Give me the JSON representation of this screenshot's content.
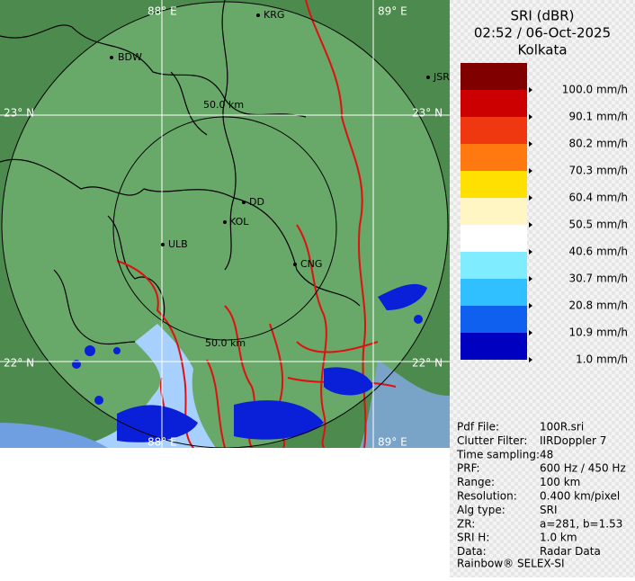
{
  "map": {
    "lon_labels": [
      "88° E",
      "89° E"
    ],
    "lat_labels": [
      "23° N",
      "22° N"
    ],
    "ring_label": "50.0 km",
    "cities": [
      "BDW",
      "KRG",
      "JSR",
      "DD",
      "KOL",
      "ULB",
      "CNG"
    ]
  },
  "legend": {
    "title": [
      "SRI (dBR)",
      "02:52 / 06-Oct-2025",
      "Kolkata"
    ],
    "entries": [
      {
        "label": "100.0 mm/h",
        "color": "#800000"
      },
      {
        "label": "90.1 mm/h",
        "color": "#cc0000"
      },
      {
        "label": "80.2 mm/h",
        "color": "#f03810"
      },
      {
        "label": "70.3 mm/h",
        "color": "#ff7810"
      },
      {
        "label": "60.4 mm/h",
        "color": "#ffe000"
      },
      {
        "label": "50.5 mm/h",
        "color": "#fff6c4"
      },
      {
        "label": "40.6 mm/h",
        "color": "#ffffff"
      },
      {
        "label": "30.7 mm/h",
        "color": "#80ecff"
      },
      {
        "label": "20.8 mm/h",
        "color": "#30c0ff"
      },
      {
        "label": "10.9 mm/h",
        "color": "#1060f0"
      },
      {
        "label": "1.0 mm/h",
        "color": "#0000c0"
      }
    ]
  },
  "info": {
    "rows": [
      [
        "Pdf File:",
        "100R.sri"
      ],
      [
        "Clutter Filter:",
        "IIRDoppler 7"
      ],
      [
        "Time sampling:",
        "48"
      ],
      [
        "PRF:",
        "600 Hz / 450 Hz"
      ],
      [
        "Range:",
        "100 km"
      ],
      [
        "Resolution:",
        "0.400 km/pixel"
      ],
      [
        "Alg type:",
        "SRI"
      ],
      [
        "ZR:",
        "a=281, b=1.53"
      ],
      [
        "SRI H:",
        "1.0 km"
      ],
      [
        "Data:",
        "Radar Data"
      ]
    ],
    "footer": "Rainbow® SELEX-SI"
  }
}
